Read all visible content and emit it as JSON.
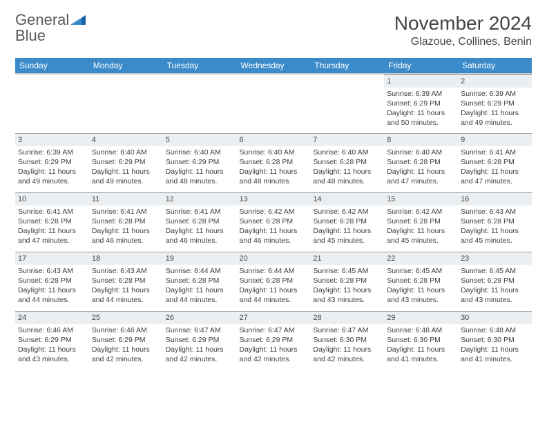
{
  "brand": {
    "word1": "General",
    "word2": "Blue"
  },
  "colors": {
    "header_bg": "#3b8bca",
    "header_text": "#ffffff",
    "daynum_bg": "#eceff1",
    "border": "#9aa1a6",
    "text": "#3d3d3d",
    "brand_gray": "#5a5a5a",
    "brand_blue": "#2a7fc9"
  },
  "title": "November 2024",
  "location": "Glazoue, Collines, Benin",
  "weekdays": [
    "Sunday",
    "Monday",
    "Tuesday",
    "Wednesday",
    "Thursday",
    "Friday",
    "Saturday"
  ],
  "weeks": [
    [
      {
        "day": "",
        "sunrise": "",
        "sunset": "",
        "daylight": ""
      },
      {
        "day": "",
        "sunrise": "",
        "sunset": "",
        "daylight": ""
      },
      {
        "day": "",
        "sunrise": "",
        "sunset": "",
        "daylight": ""
      },
      {
        "day": "",
        "sunrise": "",
        "sunset": "",
        "daylight": ""
      },
      {
        "day": "",
        "sunrise": "",
        "sunset": "",
        "daylight": ""
      },
      {
        "day": "1",
        "sunrise": "Sunrise: 6:39 AM",
        "sunset": "Sunset: 6:29 PM",
        "daylight": "Daylight: 11 hours and 50 minutes."
      },
      {
        "day": "2",
        "sunrise": "Sunrise: 6:39 AM",
        "sunset": "Sunset: 6:29 PM",
        "daylight": "Daylight: 11 hours and 49 minutes."
      }
    ],
    [
      {
        "day": "3",
        "sunrise": "Sunrise: 6:39 AM",
        "sunset": "Sunset: 6:29 PM",
        "daylight": "Daylight: 11 hours and 49 minutes."
      },
      {
        "day": "4",
        "sunrise": "Sunrise: 6:40 AM",
        "sunset": "Sunset: 6:29 PM",
        "daylight": "Daylight: 11 hours and 49 minutes."
      },
      {
        "day": "5",
        "sunrise": "Sunrise: 6:40 AM",
        "sunset": "Sunset: 6:29 PM",
        "daylight": "Daylight: 11 hours and 48 minutes."
      },
      {
        "day": "6",
        "sunrise": "Sunrise: 6:40 AM",
        "sunset": "Sunset: 6:28 PM",
        "daylight": "Daylight: 11 hours and 48 minutes."
      },
      {
        "day": "7",
        "sunrise": "Sunrise: 6:40 AM",
        "sunset": "Sunset: 6:28 PM",
        "daylight": "Daylight: 11 hours and 48 minutes."
      },
      {
        "day": "8",
        "sunrise": "Sunrise: 6:40 AM",
        "sunset": "Sunset: 6:28 PM",
        "daylight": "Daylight: 11 hours and 47 minutes."
      },
      {
        "day": "9",
        "sunrise": "Sunrise: 6:41 AM",
        "sunset": "Sunset: 6:28 PM",
        "daylight": "Daylight: 11 hours and 47 minutes."
      }
    ],
    [
      {
        "day": "10",
        "sunrise": "Sunrise: 6:41 AM",
        "sunset": "Sunset: 6:28 PM",
        "daylight": "Daylight: 11 hours and 47 minutes."
      },
      {
        "day": "11",
        "sunrise": "Sunrise: 6:41 AM",
        "sunset": "Sunset: 6:28 PM",
        "daylight": "Daylight: 11 hours and 46 minutes."
      },
      {
        "day": "12",
        "sunrise": "Sunrise: 6:41 AM",
        "sunset": "Sunset: 6:28 PM",
        "daylight": "Daylight: 11 hours and 46 minutes."
      },
      {
        "day": "13",
        "sunrise": "Sunrise: 6:42 AM",
        "sunset": "Sunset: 6:28 PM",
        "daylight": "Daylight: 11 hours and 46 minutes."
      },
      {
        "day": "14",
        "sunrise": "Sunrise: 6:42 AM",
        "sunset": "Sunset: 6:28 PM",
        "daylight": "Daylight: 11 hours and 45 minutes."
      },
      {
        "day": "15",
        "sunrise": "Sunrise: 6:42 AM",
        "sunset": "Sunset: 6:28 PM",
        "daylight": "Daylight: 11 hours and 45 minutes."
      },
      {
        "day": "16",
        "sunrise": "Sunrise: 6:43 AM",
        "sunset": "Sunset: 6:28 PM",
        "daylight": "Daylight: 11 hours and 45 minutes."
      }
    ],
    [
      {
        "day": "17",
        "sunrise": "Sunrise: 6:43 AM",
        "sunset": "Sunset: 6:28 PM",
        "daylight": "Daylight: 11 hours and 44 minutes."
      },
      {
        "day": "18",
        "sunrise": "Sunrise: 6:43 AM",
        "sunset": "Sunset: 6:28 PM",
        "daylight": "Daylight: 11 hours and 44 minutes."
      },
      {
        "day": "19",
        "sunrise": "Sunrise: 6:44 AM",
        "sunset": "Sunset: 6:28 PM",
        "daylight": "Daylight: 11 hours and 44 minutes."
      },
      {
        "day": "20",
        "sunrise": "Sunrise: 6:44 AM",
        "sunset": "Sunset: 6:28 PM",
        "daylight": "Daylight: 11 hours and 44 minutes."
      },
      {
        "day": "21",
        "sunrise": "Sunrise: 6:45 AM",
        "sunset": "Sunset: 6:28 PM",
        "daylight": "Daylight: 11 hours and 43 minutes."
      },
      {
        "day": "22",
        "sunrise": "Sunrise: 6:45 AM",
        "sunset": "Sunset: 6:28 PM",
        "daylight": "Daylight: 11 hours and 43 minutes."
      },
      {
        "day": "23",
        "sunrise": "Sunrise: 6:45 AM",
        "sunset": "Sunset: 6:29 PM",
        "daylight": "Daylight: 11 hours and 43 minutes."
      }
    ],
    [
      {
        "day": "24",
        "sunrise": "Sunrise: 6:46 AM",
        "sunset": "Sunset: 6:29 PM",
        "daylight": "Daylight: 11 hours and 43 minutes."
      },
      {
        "day": "25",
        "sunrise": "Sunrise: 6:46 AM",
        "sunset": "Sunset: 6:29 PM",
        "daylight": "Daylight: 11 hours and 42 minutes."
      },
      {
        "day": "26",
        "sunrise": "Sunrise: 6:47 AM",
        "sunset": "Sunset: 6:29 PM",
        "daylight": "Daylight: 11 hours and 42 minutes."
      },
      {
        "day": "27",
        "sunrise": "Sunrise: 6:47 AM",
        "sunset": "Sunset: 6:29 PM",
        "daylight": "Daylight: 11 hours and 42 minutes."
      },
      {
        "day": "28",
        "sunrise": "Sunrise: 6:47 AM",
        "sunset": "Sunset: 6:30 PM",
        "daylight": "Daylight: 11 hours and 42 minutes."
      },
      {
        "day": "29",
        "sunrise": "Sunrise: 6:48 AM",
        "sunset": "Sunset: 6:30 PM",
        "daylight": "Daylight: 11 hours and 41 minutes."
      },
      {
        "day": "30",
        "sunrise": "Sunrise: 6:48 AM",
        "sunset": "Sunset: 6:30 PM",
        "daylight": "Daylight: 11 hours and 41 minutes."
      }
    ]
  ]
}
